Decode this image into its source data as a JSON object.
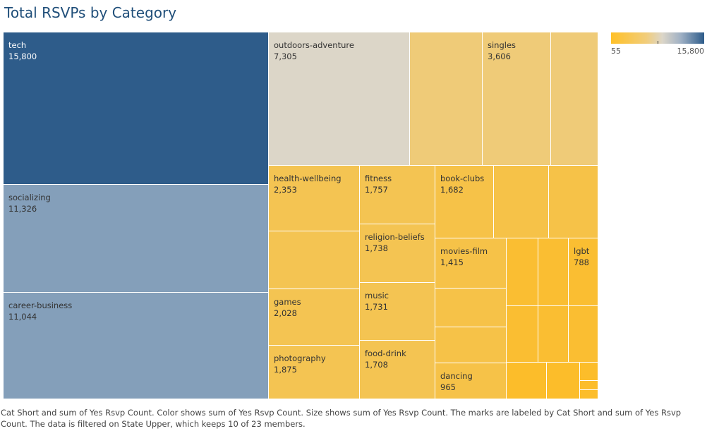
{
  "title": "Total RSVPs by Category",
  "caption": "Cat Short and sum of Yes Rsvp Count.  Color shows sum of Yes Rsvp Count.  Size shows sum of Yes Rsvp Count.  The marks are labeled by Cat Short and sum of Yes Rsvp Count. The data is filtered on State Upper, which keeps 10 of 23 members.",
  "legend": {
    "min_label": "55",
    "max_label": "15,800"
  },
  "colors": {
    "high": "#2e5c8a",
    "mid_high": "#849fba",
    "neutral": "#dcd6c8",
    "low": "#f6c343"
  },
  "chart_data": {
    "type": "treemap",
    "title": "Total RSVPs by Category",
    "size_measure": "sum of Yes Rsvp Count",
    "color_measure": "sum of Yes Rsvp Count",
    "color_range": [
      55,
      15800
    ],
    "labeled_cells": [
      {
        "name": "tech",
        "value": 15800,
        "label": "15,800"
      },
      {
        "name": "socializing",
        "value": 11326,
        "label": "11,326"
      },
      {
        "name": "career-business",
        "value": 11044,
        "label": "11,044"
      },
      {
        "name": "outdoors-adventure",
        "value": 7305,
        "label": "7,305"
      },
      {
        "name": "singles",
        "value": 3606,
        "label": "3,606"
      },
      {
        "name": "health-wellbeing",
        "value": 2353,
        "label": "2,353"
      },
      {
        "name": "games",
        "value": 2028,
        "label": "2,028"
      },
      {
        "name": "photography",
        "value": 1875,
        "label": "1,875"
      },
      {
        "name": "fitness",
        "value": 1757,
        "label": "1,757"
      },
      {
        "name": "religion-beliefs",
        "value": 1738,
        "label": "1,738"
      },
      {
        "name": "music",
        "value": 1731,
        "label": "1,731"
      },
      {
        "name": "food-drink",
        "value": 1708,
        "label": "1,708"
      },
      {
        "name": "book-clubs",
        "value": 1682,
        "label": "1,682"
      },
      {
        "name": "movies-film",
        "value": 1415,
        "label": "1,415"
      },
      {
        "name": "dancing",
        "value": 965,
        "label": "965"
      },
      {
        "name": "lgbt",
        "value": 788,
        "label": "788"
      }
    ]
  }
}
